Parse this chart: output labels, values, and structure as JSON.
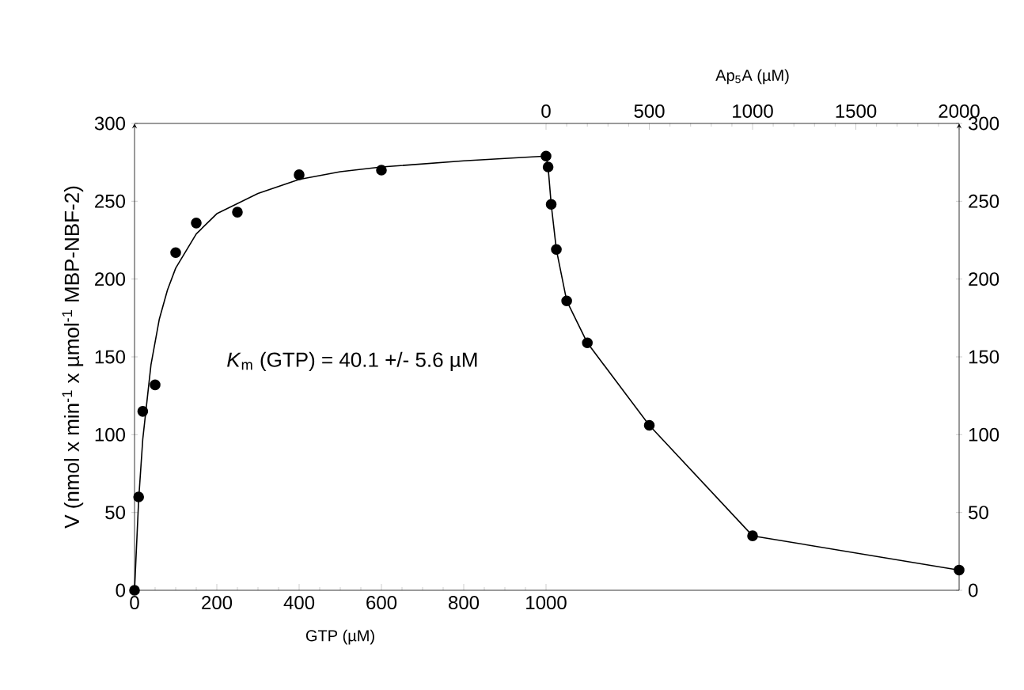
{
  "chart_data": [
    {
      "type": "scatter",
      "xlabel": "GTP (µM)",
      "ylabel": "V (nmol x min$^{-1}$ x µmol$^{-1}$ MBP-NBF-2)",
      "xlim": [
        0,
        1000
      ],
      "xticks": [
        0,
        200,
        400,
        600,
        800,
        1000
      ],
      "ylim": [
        0,
        300
      ],
      "yticks": [
        0,
        50,
        100,
        150,
        200,
        250,
        300
      ],
      "marker": "circle",
      "annotations": [
        "*K*$_{m}$ (GTP) = 40.1 +/- 5.6 µM"
      ],
      "series": [
        {
          "color": "#000000",
          "x": [
            0,
            10,
            20,
            50,
            100,
            150,
            250,
            400,
            600
          ],
          "values": [
            0,
            60,
            115,
            132,
            217,
            236,
            243,
            267,
            270
          ]
        },
        {
          "type": "line",
          "marker": "none",
          "color": "#000000",
          "x": [
            0,
            10,
            20,
            40,
            60,
            80,
            100,
            150,
            200,
            300,
            400,
            500,
            600,
            800,
            1000
          ],
          "values": [
            0,
            58,
            97,
            145,
            174,
            193,
            207,
            229,
            242,
            255,
            264,
            269,
            272,
            276,
            279
          ]
        }
      ]
    },
    {
      "type": "line",
      "xlabel": "Ap$_{5}$A (µM)",
      "xlim": [
        0,
        2000
      ],
      "xticks": [
        0,
        500,
        1000,
        1500,
        2000
      ],
      "ylim": [
        0,
        300
      ],
      "yticks": [
        0,
        50,
        100,
        150,
        200,
        250,
        300
      ],
      "marker": "circle",
      "series": [
        {
          "color": "#000000",
          "x": [
            0,
            10,
            25,
            50,
            100,
            200,
            500,
            1000,
            2000
          ],
          "values": [
            279,
            272,
            248,
            219,
            186,
            159,
            106,
            35,
            13
          ]
        }
      ]
    }
  ]
}
